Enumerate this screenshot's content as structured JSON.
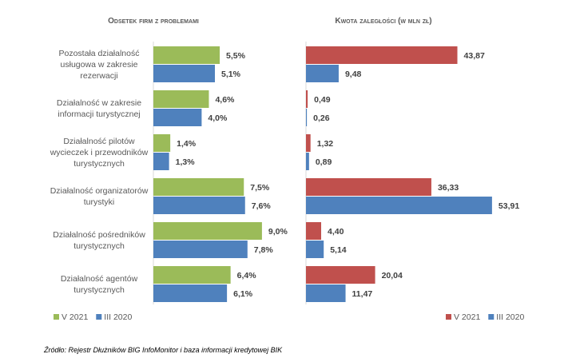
{
  "chart_data": [
    {
      "type": "bar",
      "orientation": "horizontal",
      "title": "Odsetek firm z problemami",
      "categories": [
        [
          "Pozostała działalność",
          "usługowa w zakresie",
          "rezerwacji"
        ],
        [
          "Działalność w zakresie",
          "informacji turystycznej"
        ],
        [
          "Działalność pilotów",
          "wycieczek i przewodników",
          "turystycznych"
        ],
        [
          "Działalność organizatorów",
          "turystyki"
        ],
        [
          "Działalność pośredników",
          "turystycznych"
        ],
        [
          "Działalność agentów",
          "turystycznych"
        ]
      ],
      "series": [
        {
          "name": "V 2021",
          "color": "#9bbb59",
          "values": [
            5.5,
            4.6,
            1.4,
            7.5,
            9.0,
            6.4
          ],
          "labels": [
            "5,5%",
            "4,6%",
            "1,4%",
            "7,5%",
            "9,0%",
            "6,4%"
          ]
        },
        {
          "name": "III 2020",
          "color": "#4f81bd",
          "values": [
            5.1,
            4.0,
            1.3,
            7.6,
            7.8,
            6.1
          ],
          "labels": [
            "5,1%",
            "4,0%",
            "1,3%",
            "7,6%",
            "7,8%",
            "6,1%"
          ]
        }
      ],
      "legend": "bottom-left",
      "grid": false
    },
    {
      "type": "bar",
      "orientation": "horizontal",
      "title": "Kwota zaległości (w mln zł)",
      "series": [
        {
          "name": "V 2021",
          "color": "#c0504d",
          "values": [
            43.87,
            0.49,
            1.32,
            36.33,
            4.4,
            20.04
          ],
          "labels": [
            "43,87",
            "0,49",
            "1,32",
            "36,33",
            "4,40",
            "20,04"
          ]
        },
        {
          "name": "III 2020",
          "color": "#4f81bd",
          "values": [
            9.48,
            0.26,
            0.89,
            53.91,
            5.14,
            11.47
          ],
          "labels": [
            "9,48",
            "0,26",
            "0,89",
            "53,91",
            "5,14",
            "11,47"
          ]
        }
      ],
      "legend": "bottom-right",
      "grid": false
    }
  ],
  "source": "Źródło: Rejestr Dłużników BIG InfoMonitor i baza informacji kredytowej BIK"
}
